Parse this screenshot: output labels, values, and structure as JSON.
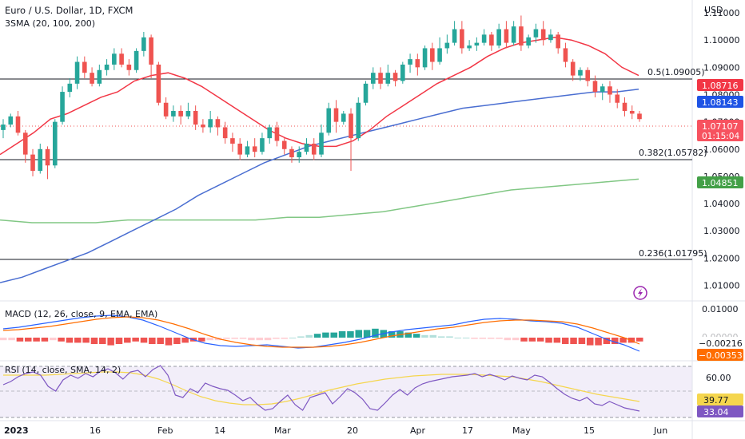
{
  "header": {
    "title": "Euro / U.S. Dollar, 1D, FXCM",
    "indicator": "3SMA (20, 100, 200)",
    "currency": "USD"
  },
  "price_axis": {
    "ticks": [
      "1.11000",
      "1.10000",
      "1.09000",
      "1.08000",
      "1.07000",
      "1.06000",
      "1.05000",
      "1.04000",
      "1.03000",
      "1.02000",
      "1.01000"
    ]
  },
  "date_axis": {
    "labels": [
      "2023",
      "16",
      "Feb",
      "14",
      "Mar",
      "20",
      "Apr",
      "17",
      "May",
      "15",
      "Jun"
    ]
  },
  "fib": {
    "f05": "0.5(1.09005)",
    "f0382": "0.382(1.05782)",
    "f0236": "0.236(1.01795)"
  },
  "badges": {
    "sma20": "1.08716",
    "sma100": "1.08143",
    "price": "1.07107",
    "countdown": "01:15:04",
    "sma200": "1.04851",
    "macd_line": "−0.00216",
    "macd_signal": "−0.00353",
    "rsi_ma": "39.77",
    "rsi": "33.04"
  },
  "macd": {
    "title": "MACD (12, 26, close, 9, EMA, EMA)",
    "tick_top": "0.01000",
    "tick_zero": "0.00000"
  },
  "rsi": {
    "title": "RSI (14, close, SMA, 14, 2)",
    "tick_60": "60.00"
  },
  "colors": {
    "up": "#26a69a",
    "down": "#ef5350",
    "sma20": "#f23645",
    "sma100": "#4a6ed1",
    "sma200": "#81c784",
    "macd_line": "#2962ff",
    "macd_signal": "#ff6d00",
    "rsi_line": "#7e57c2",
    "rsi_ma": "#f5d64e"
  },
  "chart_data": {
    "type": "line",
    "title": "Euro / U.S. Dollar, 1D, FXCM",
    "y_unit": "USD",
    "ylim": [
      1.0043,
      1.1147
    ],
    "x_labels": [
      "2023",
      "16",
      "Feb",
      "14",
      "Mar",
      "20",
      "Apr",
      "17",
      "May",
      "15",
      "Jun"
    ],
    "fib_levels": [
      {
        "label": "0.5",
        "value": 1.09005
      },
      {
        "label": "0.382",
        "value": 1.05782
      },
      {
        "label": "0.236",
        "value": 1.01795
      }
    ],
    "series": [
      {
        "name": "SMA 20",
        "last": 1.08716,
        "values": [
          1.058,
          1.062,
          1.066,
          1.071,
          1.073,
          1.076,
          1.079,
          1.081,
          1.085,
          1.087,
          1.088,
          1.086,
          1.083,
          1.079,
          1.075,
          1.071,
          1.067,
          1.064,
          1.062,
          1.061,
          1.061,
          1.063,
          1.067,
          1.072,
          1.076,
          1.08,
          1.084,
          1.087,
          1.09,
          1.094,
          1.097,
          1.099,
          1.1,
          1.101,
          1.1,
          1.098,
          1.095,
          1.09,
          1.087
        ]
      },
      {
        "name": "SMA 100",
        "last": 1.08143,
        "values": [
          1.011,
          1.013,
          1.016,
          1.019,
          1.022,
          1.026,
          1.03,
          1.034,
          1.038,
          1.043,
          1.047,
          1.051,
          1.055,
          1.058,
          1.061,
          1.063,
          1.065,
          1.067,
          1.069,
          1.071,
          1.073,
          1.075,
          1.076,
          1.077,
          1.078,
          1.079,
          1.08,
          1.081,
          1.081,
          1.082
        ]
      },
      {
        "name": "SMA 200",
        "last": 1.04851,
        "values": [
          1.034,
          1.033,
          1.033,
          1.033,
          1.034,
          1.034,
          1.034,
          1.034,
          1.034,
          1.035,
          1.035,
          1.036,
          1.037,
          1.039,
          1.041,
          1.043,
          1.045,
          1.046,
          1.047,
          1.048,
          1.049
        ]
      },
      {
        "name": "Price",
        "last": 1.07107,
        "candles": [
          [
            1.067,
            1.069,
            1.064,
            1.071
          ],
          [
            1.069,
            1.072,
            1.068,
            1.073
          ],
          [
            1.072,
            1.066,
            1.065,
            1.074
          ],
          [
            1.066,
            1.058,
            1.055,
            1.067
          ],
          [
            1.058,
            1.052,
            1.05,
            1.06
          ],
          [
            1.052,
            1.06,
            1.051,
            1.062
          ],
          [
            1.06,
            1.054,
            1.049,
            1.061
          ],
          [
            1.054,
            1.07,
            1.053,
            1.071
          ],
          [
            1.07,
            1.081,
            1.069,
            1.083
          ],
          [
            1.081,
            1.084,
            1.079,
            1.086
          ],
          [
            1.084,
            1.092,
            1.082,
            1.094
          ],
          [
            1.092,
            1.088,
            1.086,
            1.094
          ],
          [
            1.088,
            1.084,
            1.083,
            1.09
          ],
          [
            1.084,
            1.089,
            1.083,
            1.091
          ],
          [
            1.089,
            1.091,
            1.087,
            1.093
          ],
          [
            1.091,
            1.095,
            1.089,
            1.097
          ],
          [
            1.095,
            1.091,
            1.09,
            1.097
          ],
          [
            1.091,
            1.089,
            1.087,
            1.093
          ],
          [
            1.089,
            1.096,
            1.088,
            1.097
          ],
          [
            1.096,
            1.101,
            1.094,
            1.103
          ],
          [
            1.101,
            1.091,
            1.086,
            1.102
          ],
          [
            1.091,
            1.077,
            1.076,
            1.092
          ],
          [
            1.077,
            1.072,
            1.071,
            1.079
          ],
          [
            1.072,
            1.074,
            1.07,
            1.076
          ],
          [
            1.074,
            1.072,
            1.069,
            1.076
          ],
          [
            1.072,
            1.074,
            1.071,
            1.077
          ],
          [
            1.074,
            1.069,
            1.067,
            1.076
          ],
          [
            1.069,
            1.068,
            1.066,
            1.071
          ],
          [
            1.068,
            1.071,
            1.066,
            1.074
          ],
          [
            1.071,
            1.068,
            1.065,
            1.072
          ],
          [
            1.068,
            1.064,
            1.062,
            1.07
          ],
          [
            1.064,
            1.062,
            1.059,
            1.066
          ],
          [
            1.062,
            1.058,
            1.056,
            1.064
          ],
          [
            1.058,
            1.061,
            1.057,
            1.063
          ],
          [
            1.061,
            1.059,
            1.057,
            1.064
          ],
          [
            1.059,
            1.064,
            1.058,
            1.066
          ],
          [
            1.064,
            1.068,
            1.062,
            1.069
          ],
          [
            1.068,
            1.063,
            1.061,
            1.07
          ],
          [
            1.063,
            1.06,
            1.058,
            1.064
          ],
          [
            1.06,
            1.057,
            1.055,
            1.061
          ],
          [
            1.057,
            1.059,
            1.055,
            1.061
          ],
          [
            1.059,
            1.062,
            1.058,
            1.064
          ],
          [
            1.062,
            1.058,
            1.056,
            1.064
          ],
          [
            1.058,
            1.066,
            1.057,
            1.069
          ],
          [
            1.066,
            1.075,
            1.065,
            1.077
          ],
          [
            1.075,
            1.07,
            1.066,
            1.078
          ],
          [
            1.07,
            1.073,
            1.069,
            1.074
          ],
          [
            1.073,
            1.064,
            1.052,
            1.075
          ],
          [
            1.064,
            1.077,
            1.063,
            1.079
          ],
          [
            1.077,
            1.084,
            1.076,
            1.085
          ],
          [
            1.084,
            1.088,
            1.082,
            1.09
          ],
          [
            1.088,
            1.084,
            1.082,
            1.09
          ],
          [
            1.084,
            1.088,
            1.083,
            1.091
          ],
          [
            1.088,
            1.085,
            1.083,
            1.089
          ],
          [
            1.085,
            1.091,
            1.084,
            1.092
          ],
          [
            1.091,
            1.093,
            1.088,
            1.095
          ],
          [
            1.093,
            1.09,
            1.087,
            1.095
          ],
          [
            1.09,
            1.097,
            1.089,
            1.098
          ],
          [
            1.097,
            1.092,
            1.089,
            1.099
          ],
          [
            1.092,
            1.097,
            1.091,
            1.101
          ],
          [
            1.097,
            1.099,
            1.095,
            1.102
          ],
          [
            1.099,
            1.104,
            1.098,
            1.107
          ],
          [
            1.104,
            1.097,
            1.095,
            1.107
          ],
          [
            1.097,
            1.098,
            1.096,
            1.1
          ],
          [
            1.098,
            1.099,
            1.096,
            1.101
          ],
          [
            1.099,
            1.102,
            1.098,
            1.104
          ],
          [
            1.102,
            1.098,
            1.096,
            1.103
          ],
          [
            1.098,
            1.104,
            1.097,
            1.106
          ],
          [
            1.104,
            1.099,
            1.097,
            1.107
          ],
          [
            1.099,
            1.105,
            1.098,
            1.107
          ],
          [
            1.105,
            1.098,
            1.096,
            1.109
          ],
          [
            1.098,
            1.101,
            1.097,
            1.102
          ],
          [
            1.101,
            1.104,
            1.099,
            1.106
          ],
          [
            1.104,
            1.1,
            1.098,
            1.107
          ],
          [
            1.1,
            1.102,
            1.099,
            1.104
          ],
          [
            1.102,
            1.097,
            1.095,
            1.103
          ],
          [
            1.097,
            1.092,
            1.09,
            1.099
          ],
          [
            1.092,
            1.087,
            1.085,
            1.093
          ],
          [
            1.087,
            1.089,
            1.085,
            1.09
          ],
          [
            1.089,
            1.085,
            1.083,
            1.09
          ],
          [
            1.085,
            1.081,
            1.079,
            1.087
          ],
          [
            1.081,
            1.083,
            1.078,
            1.084
          ],
          [
            1.083,
            1.08,
            1.077,
            1.085
          ],
          [
            1.08,
            1.077,
            1.075,
            1.082
          ],
          [
            1.077,
            1.074,
            1.072,
            1.079
          ],
          [
            1.074,
            1.073,
            1.071,
            1.076
          ],
          [
            1.073,
            1.071,
            1.07,
            1.074
          ]
        ]
      }
    ]
  }
}
